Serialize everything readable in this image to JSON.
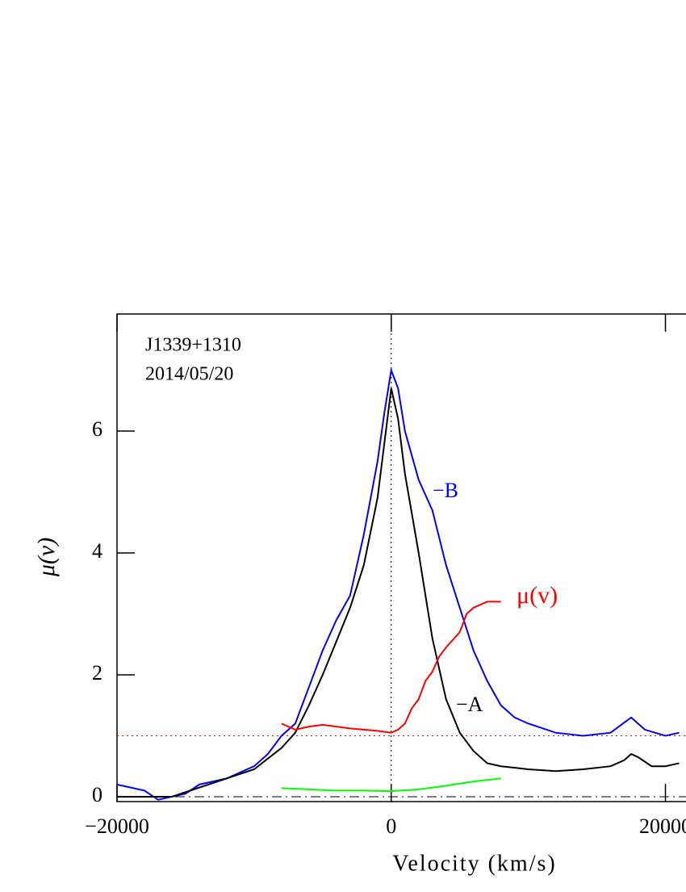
{
  "chart_data": {
    "type": "line",
    "x_label": "Velocity (km/s)",
    "y_label": "μ(v)",
    "annotations": [
      "J1339+1310",
      "2014/05/20"
    ],
    "xlim": [
      -20000,
      21500
    ],
    "ylim": [
      -0.08,
      7.92
    ],
    "xticks": [
      {
        "value": -20000,
        "label": "−20000"
      },
      0,
      20000
    ],
    "yticks": [
      0,
      2,
      4,
      6
    ],
    "hlines": [
      {
        "value": 1,
        "color": "#ff0000",
        "style": "dotted"
      },
      {
        "value": 0,
        "color": "#000000",
        "style": "dashdot"
      }
    ],
    "vlines": [
      {
        "value": 0,
        "color": "#000000",
        "style": "dotted"
      }
    ],
    "series": [
      {
        "name": "−B",
        "color": "#0000ff",
        "x": [
          -20000,
          -19000,
          -18000,
          -17000,
          -16000,
          -15000,
          -14000,
          -12000,
          -10000,
          -9000,
          -8000,
          -7000,
          -6000,
          -5000,
          -4000,
          -3000,
          -2000,
          -1000,
          -500,
          0,
          500,
          1000,
          2000,
          3000,
          4000,
          5000,
          6000,
          7000,
          8000,
          9000,
          10000,
          12000,
          14000,
          16000,
          17500,
          18500,
          20000,
          21000
        ],
        "values": [
          0.2,
          0.15,
          0.1,
          -0.05,
          0.0,
          0.05,
          0.2,
          0.3,
          0.5,
          0.7,
          1.0,
          1.2,
          1.8,
          2.4,
          2.9,
          3.3,
          4.3,
          5.5,
          6.3,
          7.0,
          6.7,
          6.0,
          5.2,
          4.7,
          3.8,
          3.1,
          2.4,
          1.9,
          1.5,
          1.3,
          1.2,
          1.05,
          1.0,
          1.05,
          1.3,
          1.1,
          1.0,
          1.05
        ]
      },
      {
        "name": "−A",
        "color": "#000000",
        "x": [
          -20000,
          -16000,
          -14000,
          -12000,
          -10000,
          -8000,
          -7000,
          -6000,
          -5000,
          -4000,
          -3000,
          -2000,
          -1000,
          0,
          500,
          1000,
          2000,
          3000,
          4000,
          5000,
          6000,
          7000,
          8000,
          10000,
          12000,
          14000,
          16000,
          17000,
          17500,
          18000,
          19000,
          20000,
          21000
        ],
        "values": [
          0.0,
          0.0,
          0.15,
          0.3,
          0.45,
          0.8,
          1.05,
          1.5,
          2.0,
          2.55,
          3.1,
          3.8,
          4.9,
          6.7,
          6.2,
          5.3,
          4.0,
          2.6,
          1.6,
          1.05,
          0.75,
          0.55,
          0.5,
          0.45,
          0.42,
          0.45,
          0.5,
          0.6,
          0.7,
          0.65,
          0.5,
          0.5,
          0.55
        ]
      },
      {
        "name": "μ(v)",
        "color": "#ff0000",
        "x": [
          -8000,
          -7000,
          -6000,
          -5000,
          -4000,
          -3000,
          -2000,
          -1000,
          0,
          500,
          1000,
          1500,
          2000,
          2500,
          3000,
          3500,
          4000,
          5000,
          5500,
          6000,
          7000,
          8000
        ],
        "values": [
          1.2,
          1.1,
          1.15,
          1.18,
          1.15,
          1.12,
          1.1,
          1.08,
          1.05,
          1.1,
          1.2,
          1.45,
          1.6,
          1.9,
          2.05,
          2.3,
          2.45,
          2.7,
          3.0,
          3.1,
          3.2,
          3.2
        ]
      },
      {
        "color": "#00ff00",
        "x": [
          -8000,
          -6000,
          -4000,
          -2000,
          0,
          2000,
          4000,
          6000,
          8000
        ],
        "values": [
          0.14,
          0.12,
          0.1,
          0.1,
          0.09,
          0.12,
          0.18,
          0.25,
          0.3
        ]
      }
    ]
  }
}
